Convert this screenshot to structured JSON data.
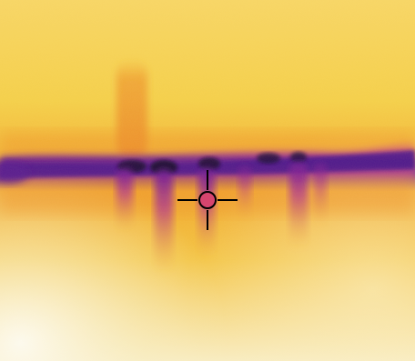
{
  "image": {
    "subject": "thermal-image",
    "palette": {
      "hot_white": "#fbf7e7",
      "hot_yellow": "#f6cf3f",
      "warm_orange": "#f0a52e",
      "mid_magenta": "#b73a95",
      "cool_purple": "#4a148c",
      "cold_black": "#1a0933",
      "reticle": "#000000",
      "reticle_fill": "#d6456f"
    },
    "icons": {
      "crosshair": "crosshair-icon"
    }
  }
}
